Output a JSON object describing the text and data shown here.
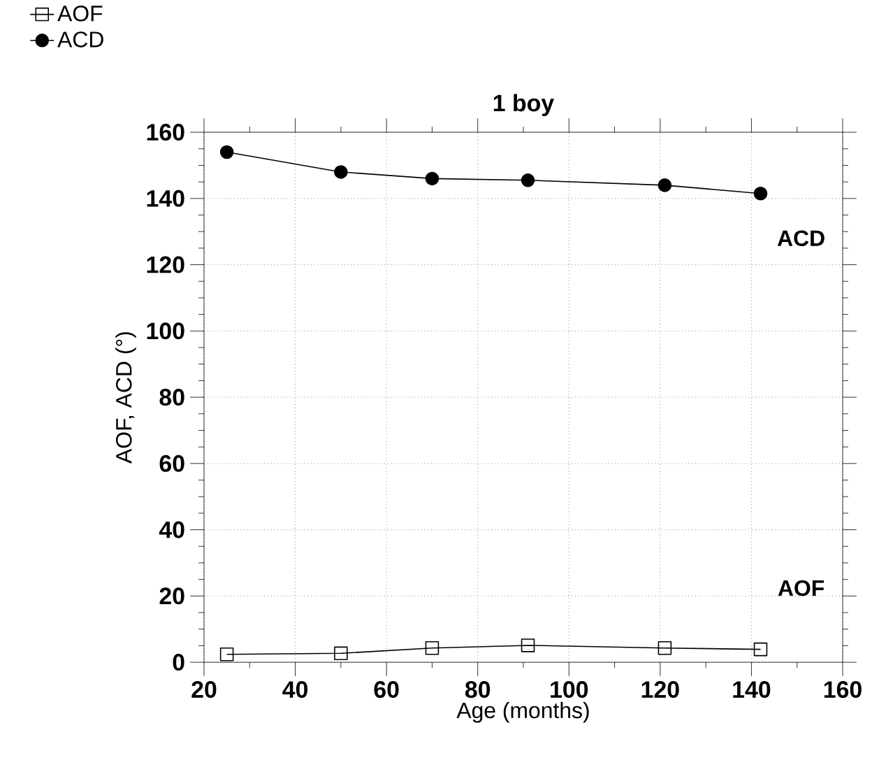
{
  "chart_data": {
    "type": "line",
    "title": "1 boy",
    "xlabel": "Age (months)",
    "ylabel": "AOF, ACD (°)",
    "x": [
      25,
      50,
      70,
      91,
      121,
      142
    ],
    "series": [
      {
        "name": "AOF",
        "color": "#000000",
        "marker": "square",
        "values": [
          2.4,
          2.7,
          4.3,
          5.1,
          4.3,
          3.9
        ]
      },
      {
        "name": "ACD",
        "color": "#000000",
        "marker": "circle",
        "values": [
          154,
          148,
          146,
          145.5,
          144,
          141.5
        ]
      }
    ],
    "annotations": [
      "ACD",
      "AOF"
    ],
    "xlim": [
      20,
      160
    ],
    "xticks": [
      20,
      40,
      60,
      80,
      100,
      120,
      140,
      160
    ],
    "ylim": [
      0,
      160
    ],
    "yticks": [
      0,
      20,
      40,
      60,
      80,
      100,
      120,
      140,
      160
    ],
    "grid": true,
    "legend": "top left",
    "line_style": "solid"
  }
}
